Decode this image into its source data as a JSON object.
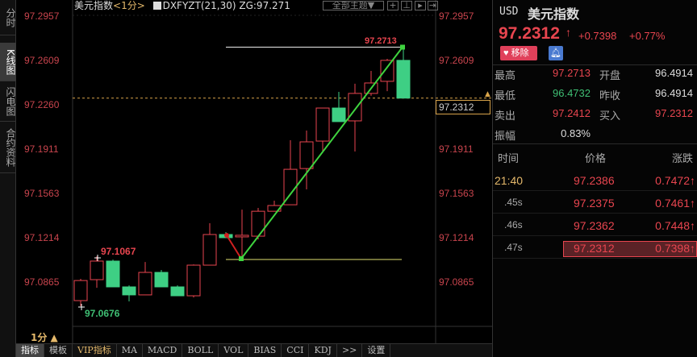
{
  "sidebar": {
    "tabs": [
      {
        "label": "分时"
      },
      {
        "label": "K线图"
      },
      {
        "label": "闪电图"
      },
      {
        "label": "合约资料"
      }
    ]
  },
  "chart": {
    "symbol_label": "美元指数",
    "period": "<1分>",
    "indicator": "DXFYZT(21,30) ZG:97.271",
    "theme_button": "全部主题▼",
    "axis_labels": [
      "97.2957",
      "97.2609",
      "97.2260",
      "97.1911",
      "97.1563",
      "97.1214",
      "97.0865"
    ],
    "axis_range": [
      97.0865,
      97.2957
    ],
    "current_price": "97.2312",
    "high_label": "97.2713",
    "mid_high_label": "97.1067",
    "low_label": "97.0676",
    "period_selector": "1分 ▲",
    "colors": {
      "up": "#e8454f",
      "down": "#3ecf84",
      "trend": "#3fd43f",
      "reversal": "#d02020"
    },
    "candles": [
      [
        97.0719,
        97.0877,
        97.0676,
        97.089
      ],
      [
        97.0884,
        97.103,
        97.082,
        97.1067
      ],
      [
        97.103,
        97.0827,
        97.0827,
        97.1042
      ],
      [
        97.0827,
        97.0764,
        97.0713,
        97.0839
      ],
      [
        97.0764,
        97.0941,
        97.0764,
        97.1023
      ],
      [
        97.0941,
        97.0827,
        97.0827,
        97.096
      ],
      [
        97.0827,
        97.0757,
        97.0757,
        97.0839
      ],
      [
        97.0757,
        97.0998,
        97.0744,
        97.1004
      ],
      [
        97.0998,
        97.1239,
        97.0998,
        97.1328
      ],
      [
        97.1239,
        97.1214,
        97.1214,
        97.1258
      ],
      [
        97.1226,
        97.1233,
        97.1049,
        97.1435
      ],
      [
        97.1226,
        97.1422,
        97.12,
        97.1448
      ],
      [
        97.1422,
        97.1467,
        97.1422,
        97.1505
      ],
      [
        97.1473,
        97.1752,
        97.1473,
        97.1981
      ],
      [
        97.1758,
        97.1968,
        97.1594,
        97.2057
      ],
      [
        97.1974,
        97.2234,
        97.1892,
        97.2234
      ],
      [
        97.2234,
        97.2127,
        97.2127,
        97.2361
      ],
      [
        97.2133,
        97.2349,
        97.1892,
        97.2425
      ],
      [
        97.2349,
        97.2431,
        97.233,
        97.2526
      ],
      [
        97.2444,
        97.2609,
        97.2367,
        97.2621
      ],
      [
        97.2609,
        97.2312,
        97.2312,
        97.2713
      ]
    ]
  },
  "quote": {
    "currency": "USD",
    "name": "美元指数",
    "price": "97.2312",
    "arrow": "↑",
    "change": "+0.7398",
    "change_pct": "+0.77%",
    "remove_button": "移除",
    "stats": [
      {
        "l1": "最高",
        "v1": "97.2713",
        "l2": "开盘",
        "v2": "96.4914"
      },
      {
        "l1": "最低",
        "v1": "96.4732",
        "l2": "昨收",
        "v2": "96.4914"
      },
      {
        "l1": "卖出",
        "v1": "97.2412",
        "l2": "买入",
        "v2": "97.2312"
      },
      {
        "l1": "振幅",
        "v1": "0.83%"
      }
    ],
    "ticks_header": {
      "time": "时间",
      "price": "价格",
      "change": "涨跌"
    },
    "ticks": [
      {
        "time": "21:40",
        "price": "97.2386",
        "change": "0.7472↑"
      },
      {
        "time": ".45s",
        "price": "97.2375",
        "change": "0.7461↑"
      },
      {
        "time": ".46s",
        "price": "97.2362",
        "change": "0.7448↑"
      },
      {
        "time": ".47s",
        "price": "97.2312",
        "change": "0.7398↑"
      }
    ]
  },
  "bottom_tabs": [
    "指标",
    "模板",
    "VIP指标",
    "MA",
    "MACD",
    "BOLL",
    "VOL",
    "BIAS",
    "CCI",
    "KDJ",
    ">>",
    "设置"
  ]
}
